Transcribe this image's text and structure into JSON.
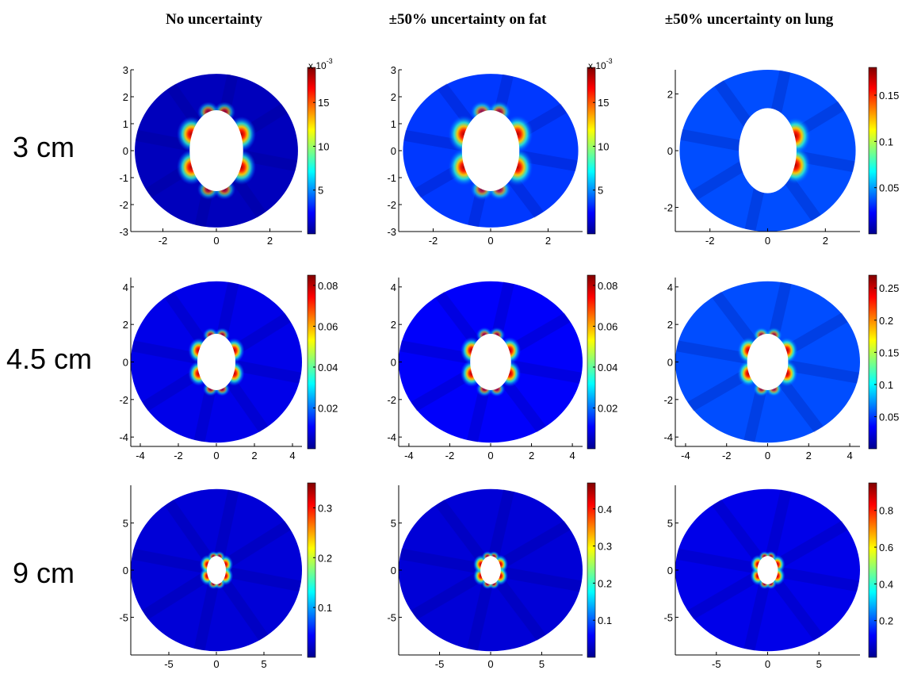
{
  "column_titles": [
    "No uncertainty",
    "±50% uncertainty on fat",
    "±50% uncertainty on lung"
  ],
  "row_labels": [
    "3 cm",
    "4.5 cm",
    "9 cm"
  ],
  "colormap": [
    "#00008f",
    "#0000ff",
    "#0080ff",
    "#00ffff",
    "#80ff80",
    "#ffff00",
    "#ff8000",
    "#ff0000",
    "#800000"
  ],
  "chart_data": [
    {
      "type": "heatmap",
      "title": "No uncertainty",
      "row": "3 cm",
      "xlim": [
        -3.2,
        3.2
      ],
      "ylim": [
        -3,
        3
      ],
      "xticks": [
        -2,
        0,
        2
      ],
      "yticks": [
        -3,
        -2,
        -1,
        0,
        1,
        2,
        3
      ],
      "outer_radius": [
        3.05,
        2.85
      ],
      "inner_radius": [
        1,
        1.5
      ],
      "colorbar": {
        "min": 0,
        "max": 0.019,
        "ticks": [
          5,
          10,
          15
        ],
        "multiplier": "x 10^-3"
      },
      "hotspots": 4,
      "background": 0.05
    },
    {
      "type": "heatmap",
      "title": "±50% uncertainty on fat",
      "row": "3 cm",
      "xlim": [
        -3.2,
        3.2
      ],
      "ylim": [
        -3,
        3
      ],
      "xticks": [
        -2,
        0,
        2
      ],
      "yticks": [
        -3,
        -2,
        -1,
        0,
        1,
        2,
        3
      ],
      "outer_radius": [
        3.05,
        2.85
      ],
      "inner_radius": [
        1,
        1.5
      ],
      "colorbar": {
        "min": 0,
        "max": 0.019,
        "ticks": [
          5,
          10,
          15
        ],
        "multiplier": "x 10^-3"
      },
      "hotspots": 4,
      "background": 0.18
    },
    {
      "type": "heatmap",
      "title": "±50% uncertainty on lung",
      "row": "3 cm",
      "xlim": [
        -3.2,
        3.2
      ],
      "ylim": [
        -2.85,
        2.85
      ],
      "xticks": [
        -2,
        0,
        2
      ],
      "yticks": [
        -2,
        0,
        2
      ],
      "outer_radius": [
        3.05,
        2.85
      ],
      "inner_radius": [
        1,
        1.5
      ],
      "colorbar": {
        "min": 0,
        "max": 0.18,
        "ticks": [
          0.05,
          0.1,
          0.15
        ]
      },
      "hotspots": 2,
      "background": 0.2
    },
    {
      "type": "heatmap",
      "title": "No uncertainty",
      "row": "4.5 cm",
      "xlim": [
        -4.5,
        4.5
      ],
      "ylim": [
        -4.5,
        4.5
      ],
      "xticks": [
        -4,
        -2,
        0,
        2,
        4
      ],
      "yticks": [
        -4,
        -2,
        0,
        2,
        4
      ],
      "outer_radius": [
        4.5,
        4.3
      ],
      "inner_radius": [
        1,
        1.5
      ],
      "colorbar": {
        "min": 0,
        "max": 0.085,
        "ticks": [
          0.02,
          0.04,
          0.06,
          0.08
        ]
      },
      "hotspots": 4,
      "background": 0.1
    },
    {
      "type": "heatmap",
      "title": "±50% uncertainty on fat",
      "row": "4.5 cm",
      "xlim": [
        -4.5,
        4.5
      ],
      "ylim": [
        -4.5,
        4.5
      ],
      "xticks": [
        -4,
        -2,
        0,
        2,
        4
      ],
      "yticks": [
        -4,
        -2,
        0,
        2,
        4
      ],
      "outer_radius": [
        4.5,
        4.3
      ],
      "inner_radius": [
        1,
        1.5
      ],
      "colorbar": {
        "min": 0,
        "max": 0.085,
        "ticks": [
          0.02,
          0.04,
          0.06,
          0.08
        ]
      },
      "hotspots": 4,
      "background": 0.12
    },
    {
      "type": "heatmap",
      "title": "±50% uncertainty on lung",
      "row": "4.5 cm",
      "xlim": [
        -4.5,
        4.5
      ],
      "ylim": [
        -4.5,
        4.5
      ],
      "xticks": [
        -4,
        -2,
        0,
        2,
        4
      ],
      "yticks": [
        -4,
        -2,
        0,
        2,
        4
      ],
      "outer_radius": [
        4.5,
        4.3
      ],
      "inner_radius": [
        1,
        1.5
      ],
      "colorbar": {
        "min": 0,
        "max": 0.27,
        "ticks": [
          0.05,
          0.1,
          0.15,
          0.2,
          0.25
        ]
      },
      "hotspots": 4,
      "background": 0.2
    },
    {
      "type": "heatmap",
      "title": "No uncertainty",
      "row": "9 cm",
      "xlim": [
        -9,
        9
      ],
      "ylim": [
        -9,
        9
      ],
      "xticks": [
        -5,
        0,
        5
      ],
      "yticks": [
        -5,
        0,
        5
      ],
      "outer_radius": [
        9,
        8.6
      ],
      "inner_radius": [
        1,
        1.5
      ],
      "colorbar": {
        "min": 0,
        "max": 0.35,
        "ticks": [
          0.1,
          0.2,
          0.3
        ]
      },
      "hotspots": 4,
      "background": 0.08
    },
    {
      "type": "heatmap",
      "title": "±50% uncertainty on fat",
      "row": "9 cm",
      "xlim": [
        -9,
        9
      ],
      "ylim": [
        -9,
        9
      ],
      "xticks": [
        -5,
        0,
        5
      ],
      "yticks": [
        -5,
        0,
        5
      ],
      "outer_radius": [
        9,
        8.6
      ],
      "inner_radius": [
        1,
        1.5
      ],
      "colorbar": {
        "min": 0,
        "max": 0.47,
        "ticks": [
          0.1,
          0.2,
          0.3,
          0.4
        ]
      },
      "hotspots": 4,
      "background": 0.08
    },
    {
      "type": "heatmap",
      "title": "±50% uncertainty on lung",
      "row": "9 cm",
      "xlim": [
        -9,
        9
      ],
      "ylim": [
        -9,
        9
      ],
      "xticks": [
        -5,
        0,
        5
      ],
      "yticks": [
        -5,
        0,
        5
      ],
      "outer_radius": [
        9,
        8.6
      ],
      "inner_radius": [
        1,
        1.5
      ],
      "colorbar": {
        "min": 0,
        "max": 0.95,
        "ticks": [
          0.2,
          0.4,
          0.6,
          0.8
        ]
      },
      "hotspots": 4,
      "background": 0.1
    }
  ]
}
